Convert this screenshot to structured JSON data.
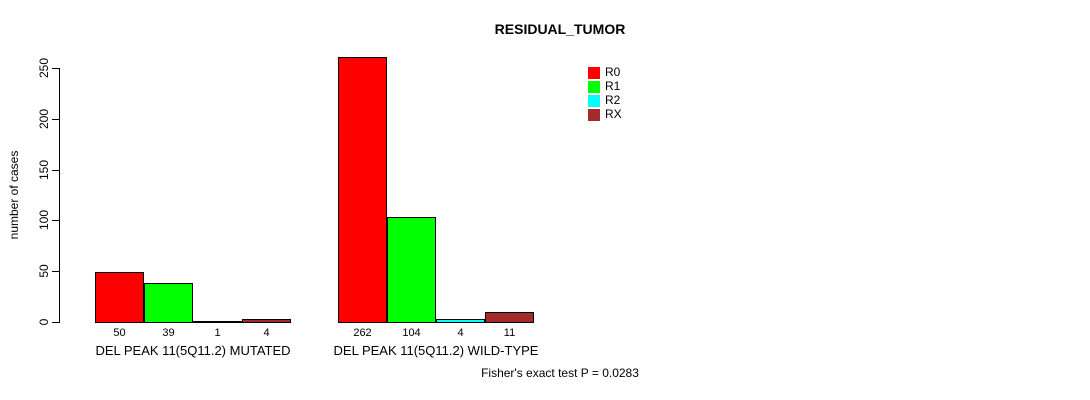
{
  "chart_data": {
    "type": "bar",
    "title": "RESIDUAL_TUMOR",
    "ylabel": "number of cases",
    "xlabel": "",
    "categories": [
      "DEL PEAK 11(5Q11.2) MUTATED",
      "DEL PEAK 11(5Q11.2) WILD-TYPE"
    ],
    "series": [
      {
        "name": "R0",
        "color": "#ff0000",
        "values": [
          50,
          262
        ]
      },
      {
        "name": "R1",
        "color": "#00ff00",
        "values": [
          39,
          104
        ]
      },
      {
        "name": "R2",
        "color": "#00ffff",
        "values": [
          1,
          4
        ]
      },
      {
        "name": "RX",
        "color": "#a52a2a",
        "values": [
          4,
          11
        ]
      }
    ],
    "yticks": [
      0,
      50,
      100,
      150,
      200,
      250
    ],
    "ylim": [
      0,
      250
    ],
    "grid": false,
    "legend_position": "top-right",
    "bar_value_labels": true,
    "annotation": "Fisher's exact test P = 0.0283"
  }
}
